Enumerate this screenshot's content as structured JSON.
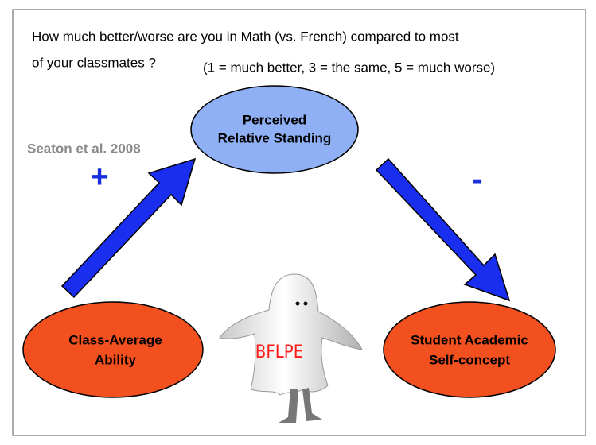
{
  "question": {
    "lines": [
      "How much better/worse are you in Math (vs. French) compared to most",
      "of your classmates ?"
    ],
    "scale": "(1 = much better, 3 = the same, 5 = much worse)"
  },
  "citation": "Seaton et al. 2008",
  "signs": {
    "left": "+",
    "right": "-"
  },
  "nodes": [
    {
      "label": [
        "Perceived",
        "Relative Standing"
      ]
    },
    {
      "label": [
        "Class-Average",
        "Ability"
      ]
    },
    {
      "label": [
        "Student Academic",
        "Self-concept"
      ]
    }
  ],
  "effect": "BFLPE"
}
